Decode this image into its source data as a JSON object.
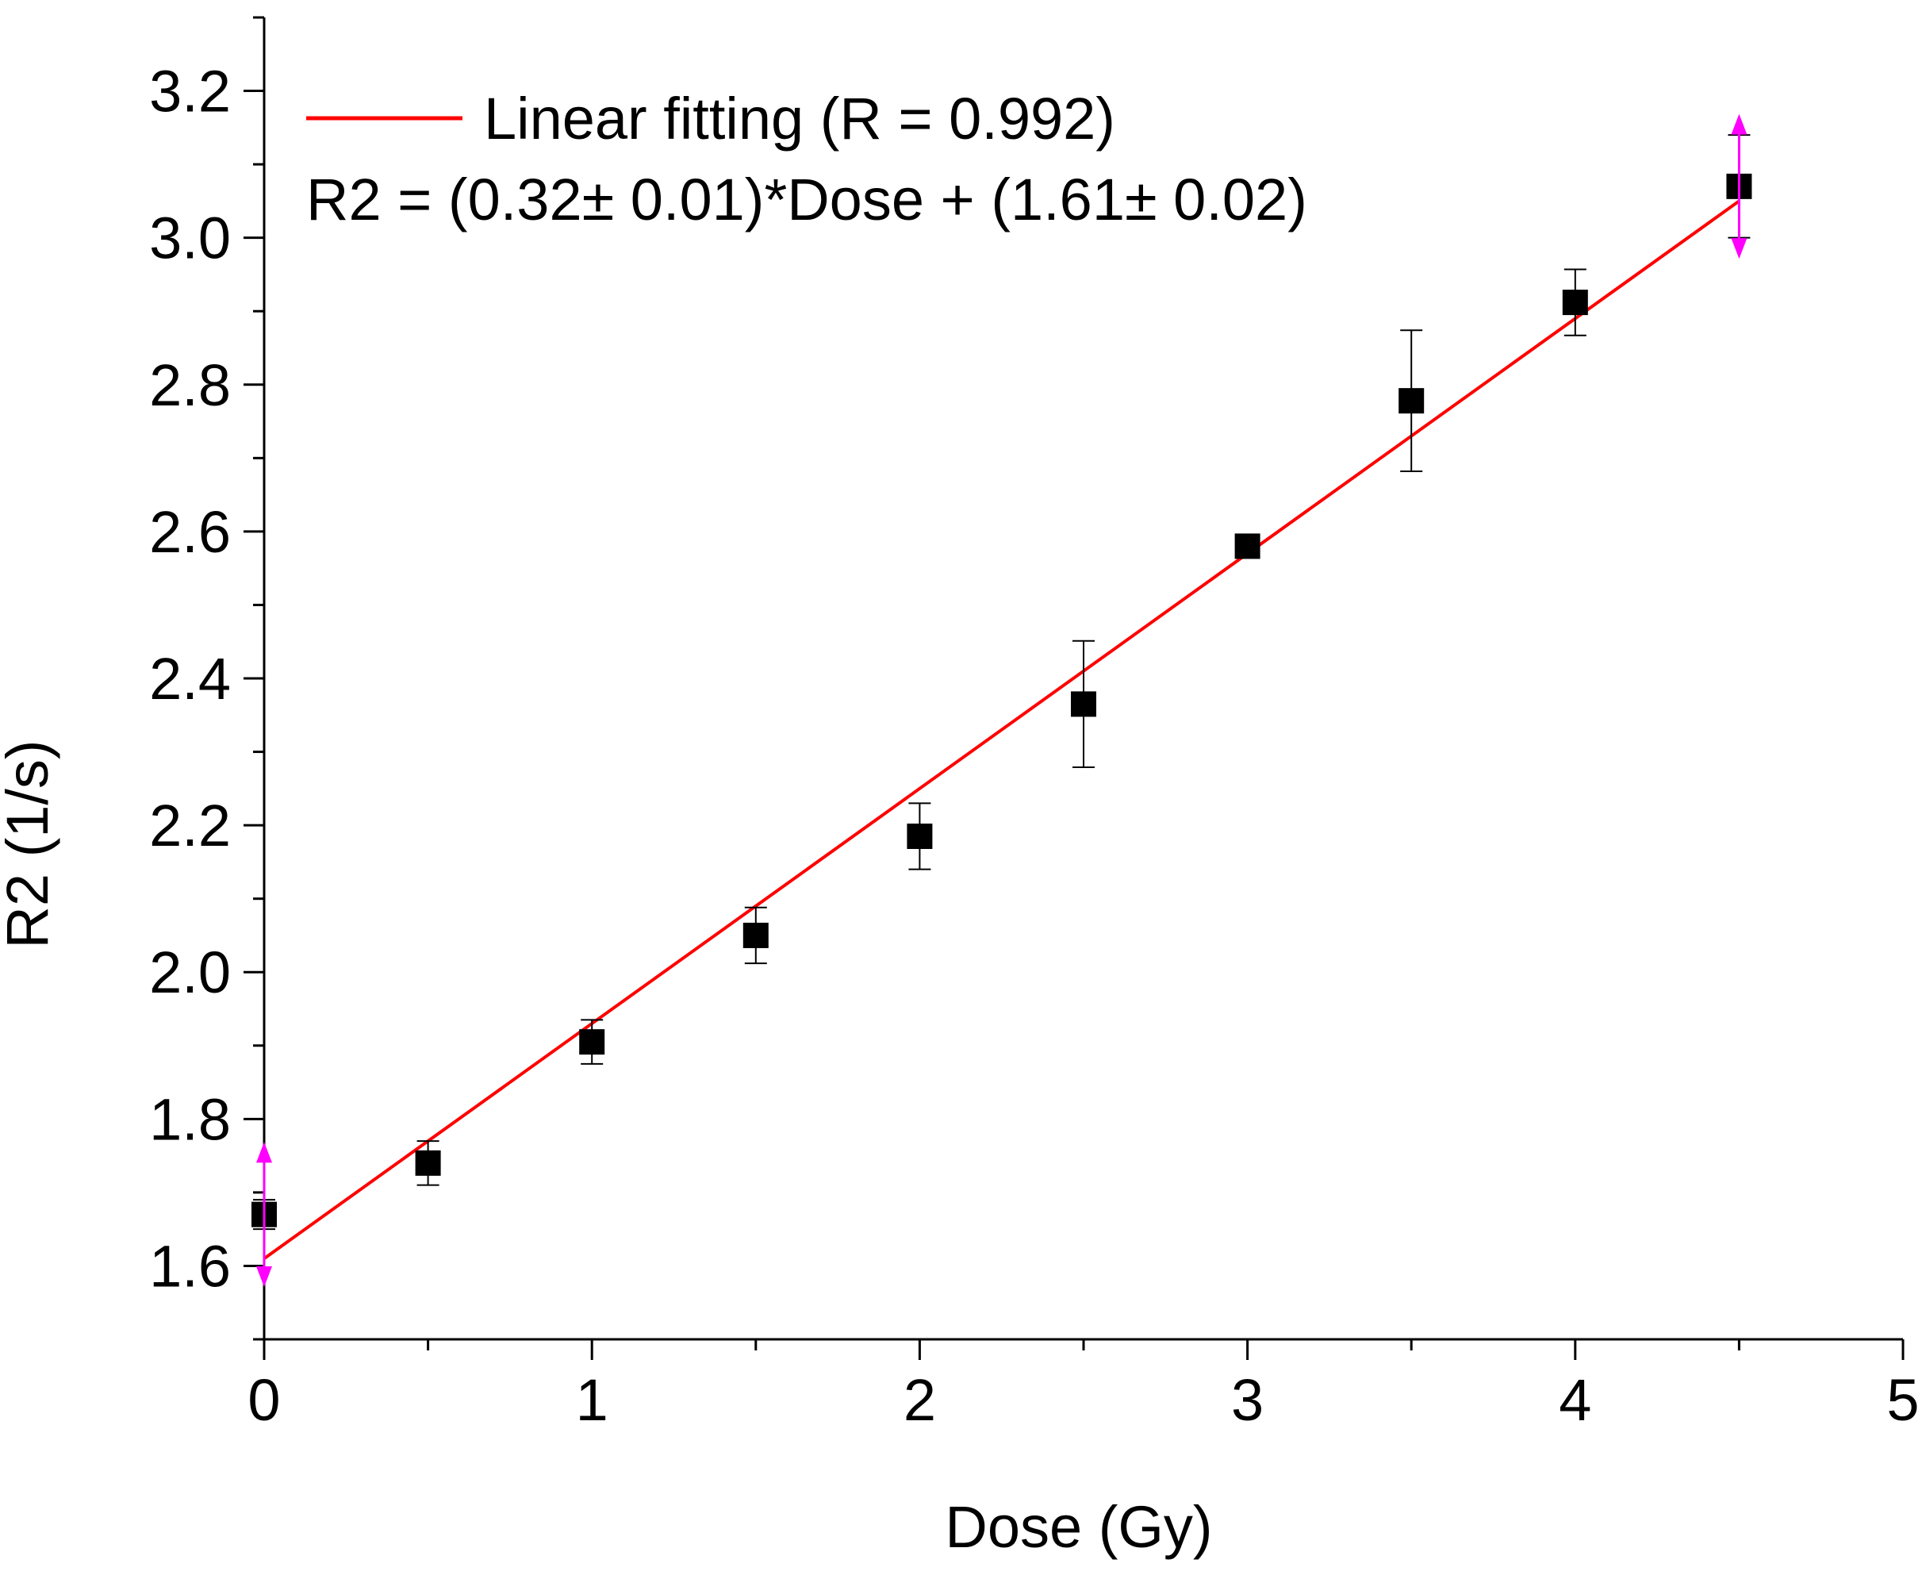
{
  "chart_data": {
    "type": "scatter",
    "title": "",
    "xlabel": "Dose (Gy)",
    "ylabel": "R2 (1/s)",
    "xlim": [
      0,
      5
    ],
    "ylim": [
      1.5,
      3.3
    ],
    "xticks": [
      "0",
      "1",
      "2",
      "3",
      "4",
      "5"
    ],
    "yticks": [
      "1.6",
      "1.8",
      "2.0",
      "2.2",
      "2.4",
      "2.6",
      "2.8",
      "3.0",
      "3.2"
    ],
    "series": [
      {
        "name": "R2",
        "marker": "square",
        "color": "#000000",
        "x": [
          0,
          0.5,
          1.0,
          1.5,
          2.0,
          2.5,
          3.0,
          3.5,
          4.0,
          4.5
        ],
        "y": [
          1.67,
          1.74,
          1.905,
          2.05,
          2.185,
          2.365,
          2.58,
          2.778,
          2.912,
          3.07
        ],
        "err": [
          0.02,
          0.03,
          0.03,
          0.038,
          0.045,
          0.086,
          0.01,
          0.096,
          0.045,
          0.07
        ]
      }
    ],
    "fit": {
      "name": "Linear fitting (R = 0.992)",
      "color": "#ff0000",
      "slope": 0.32,
      "intercept": 1.61,
      "x_range": [
        0,
        4.5
      ]
    },
    "off_scale_markers": {
      "color": "#ff00ff",
      "x": [
        0,
        4.5
      ]
    },
    "legend": {
      "line_label": "Linear fitting (R = 0.992)",
      "equation": "R2 = (0.32± 0.01)*Dose + (1.61± 0.02)",
      "position": "top-left"
    }
  }
}
